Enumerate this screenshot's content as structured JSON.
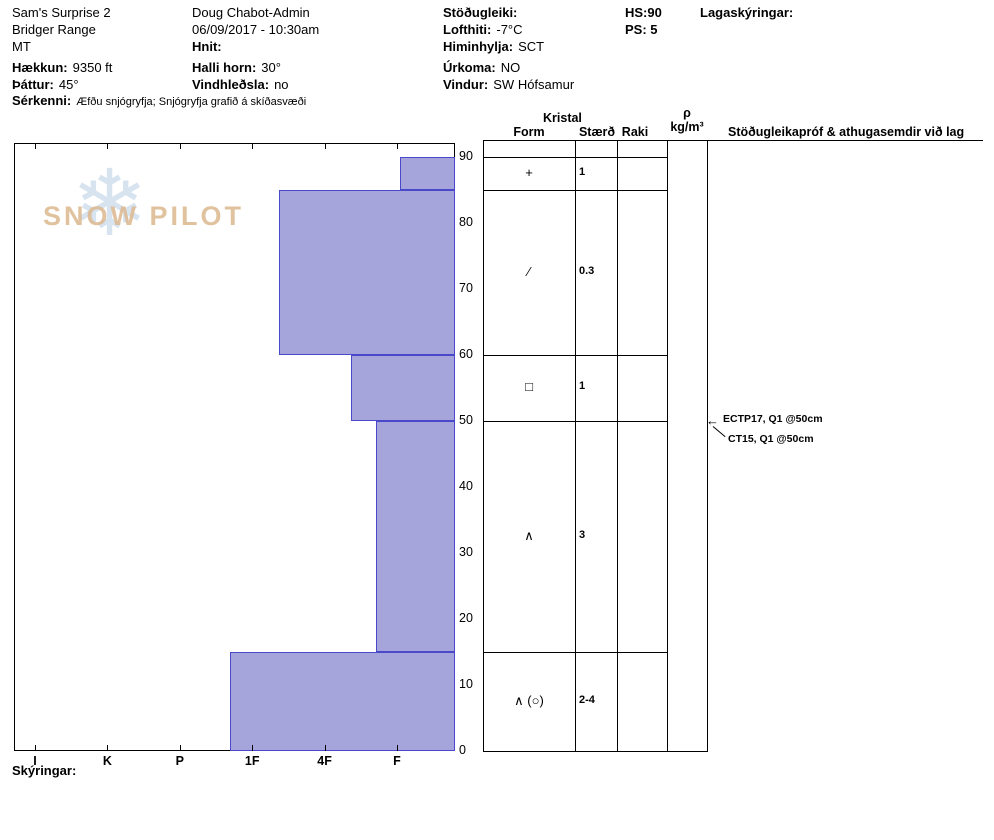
{
  "header": {
    "pit_name": "Sam's Surprise 2",
    "range": "Bridger Range",
    "state": "MT",
    "elevation": {
      "label": "Hækkun:",
      "value": "9350 ft"
    },
    "aspect": {
      "label": "Þáttur:",
      "value": "45°"
    },
    "observer": "Doug Chabot-Admin",
    "datetime": "06/09/2017 - 10:30am",
    "coords": {
      "label": "Hnit:",
      "value": ""
    },
    "slope_angle": {
      "label": "Halli horn:",
      "value": "30°"
    },
    "wind_loading": {
      "label": "Vindhleðsla:",
      "value": "no"
    },
    "stability": {
      "label": "Stöðugleiki:",
      "value": ""
    },
    "air_temp": {
      "label": "Lofthiti:",
      "value": "-7°C"
    },
    "sky": {
      "label": "Himinhylja:",
      "value": "SCT"
    },
    "precip": {
      "label": "Úrkoma:",
      "value": "NO"
    },
    "wind": {
      "label": "Vindur:",
      "value": "SW Hófsamur"
    },
    "hs": {
      "label": "HS:",
      "value": "90"
    },
    "ps": {
      "label": "PS:",
      "value": "5"
    },
    "layer_comments_label": "Lagaskýringar:",
    "notes": {
      "label": "Sérkenni:",
      "value": "Æfðu snjógryfja;  Snjógryfja grafið á skíðasvæði"
    }
  },
  "table_headers": {
    "crystal_group": "Kristal",
    "form": "Form",
    "size": "Stærð",
    "moisture": "Raki",
    "density_symbol": "ρ",
    "density_unit": "kg/m³",
    "tests_comments": "Stöðugleikapróf & athugasemdir við lag"
  },
  "watermark": {
    "text": "SNOW PILOT",
    "snowflake": "❄"
  },
  "footer": {
    "legend_label": "Skýringar:"
  },
  "chart_data": {
    "type": "bar",
    "subtype": "snow-profile-hardness",
    "title": "",
    "depth_axis": {
      "unit": "cm",
      "range": [
        0,
        90
      ],
      "ticks": [
        90,
        80,
        70,
        60,
        50,
        40,
        30,
        20,
        10,
        0
      ]
    },
    "hardness_axis": {
      "ticks": [
        "I",
        "K",
        "P",
        "1F",
        "4F",
        "F"
      ]
    },
    "hs_cm": 90,
    "layers": [
      {
        "top_cm": 90,
        "bottom_cm": 85,
        "hardness": "F",
        "bar_left_frac": 0.875,
        "form": "+",
        "size_mm": "1",
        "moisture": ""
      },
      {
        "top_cm": 85,
        "bottom_cm": 60,
        "hardness": "4F",
        "bar_left_frac": 0.6,
        "form": "∕",
        "size_mm": "0.3",
        "moisture": ""
      },
      {
        "top_cm": 60,
        "bottom_cm": 50,
        "hardness": "4F+",
        "bar_left_frac": 0.765,
        "form": "□",
        "size_mm": "1",
        "moisture": ""
      },
      {
        "top_cm": 50,
        "bottom_cm": 15,
        "hardness": "F+",
        "bar_left_frac": 0.82,
        "form": "∧",
        "size_mm": "3",
        "moisture": ""
      },
      {
        "top_cm": 15,
        "bottom_cm": 0,
        "hardness": "1F+",
        "bar_left_frac": 0.49,
        "form": "∧ (○)",
        "size_mm": "2-4",
        "moisture": ""
      }
    ],
    "stability_tests": [
      {
        "label": "ECTP17, Q1 @50cm",
        "depth_cm": 50
      },
      {
        "label": "CT15, Q1 @50cm",
        "depth_cm": 50
      }
    ],
    "bar_color": "#a5a5dc",
    "bar_border_color": "#4949c9"
  }
}
